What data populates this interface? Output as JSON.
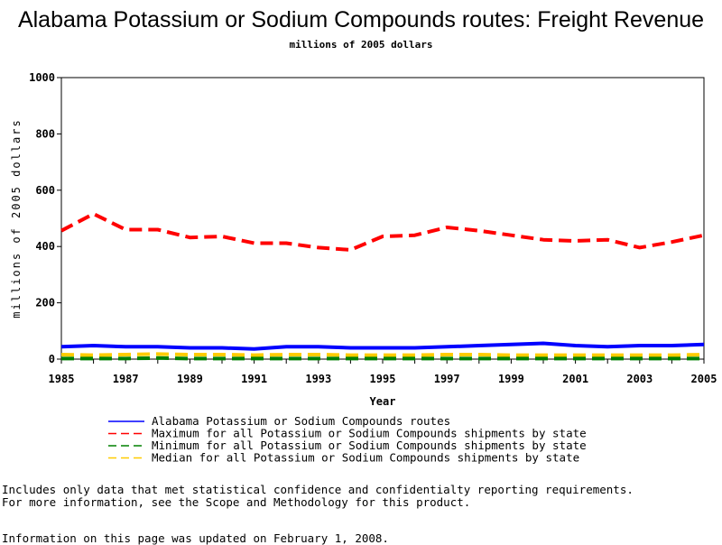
{
  "chart_data": {
    "type": "line",
    "title": "Alabama Potassium or Sodium Compounds routes: Freight Revenue",
    "subtitle": "millions of 2005 dollars",
    "xlabel": "Year",
    "ylabel": "millions of 2005 dollars",
    "xlim": [
      1985,
      2005
    ],
    "ylim": [
      0,
      1000
    ],
    "xticks": [
      "1985",
      "1987",
      "1989",
      "1991",
      "1993",
      "1995",
      "1997",
      "1999",
      "2001",
      "2003",
      "2005"
    ],
    "yticks": [
      "0",
      "200",
      "400",
      "600",
      "800",
      "1000"
    ],
    "grid": false,
    "legend_position": "bottom",
    "x": [
      1985,
      1986,
      1987,
      1988,
      1989,
      1990,
      1991,
      1992,
      1993,
      1994,
      1995,
      1996,
      1997,
      1998,
      1999,
      2000,
      2001,
      2002,
      2003,
      2004,
      2005
    ],
    "series": [
      {
        "name": "Alabama Potassium or Sodium Compounds routes",
        "color": "#0000ff",
        "dash": "solid",
        "values": [
          44,
          48,
          44,
          44,
          40,
          40,
          36,
          44,
          44,
          40,
          40,
          40,
          44,
          48,
          52,
          56,
          48,
          44,
          48,
          48,
          52
        ]
      },
      {
        "name": "Maximum for all Potassium or Sodium Compounds shipments by state",
        "color": "#ff0000",
        "dash": "dashed",
        "values": [
          456,
          516,
          460,
          460,
          432,
          436,
          412,
          412,
          396,
          388,
          436,
          440,
          468,
          456,
          440,
          424,
          420,
          424,
          396,
          416,
          440
        ]
      },
      {
        "name": "Minimum for all Potassium or Sodium Compounds shipments by state",
        "color": "#008000",
        "dash": "dashed",
        "values": [
          2,
          2,
          2,
          4,
          2,
          2,
          2,
          2,
          2,
          2,
          2,
          2,
          2,
          2,
          2,
          2,
          2,
          2,
          2,
          2,
          2
        ]
      },
      {
        "name": "Median for all Potassium or Sodium Compounds shipments by state",
        "color": "#ffcc00",
        "dash": "dashed",
        "values": [
          16,
          14,
          16,
          18,
          16,
          16,
          14,
          16,
          16,
          14,
          14,
          14,
          16,
          16,
          14,
          14,
          14,
          14,
          14,
          14,
          16
        ]
      }
    ]
  },
  "notes": {
    "line1": "Includes only data that met statistical confidence and confidentialty reporting requirements.",
    "line2": "For more information, see the Scope and Methodology for this product.",
    "updated": "Information on this page was updated on February 1, 2008."
  }
}
